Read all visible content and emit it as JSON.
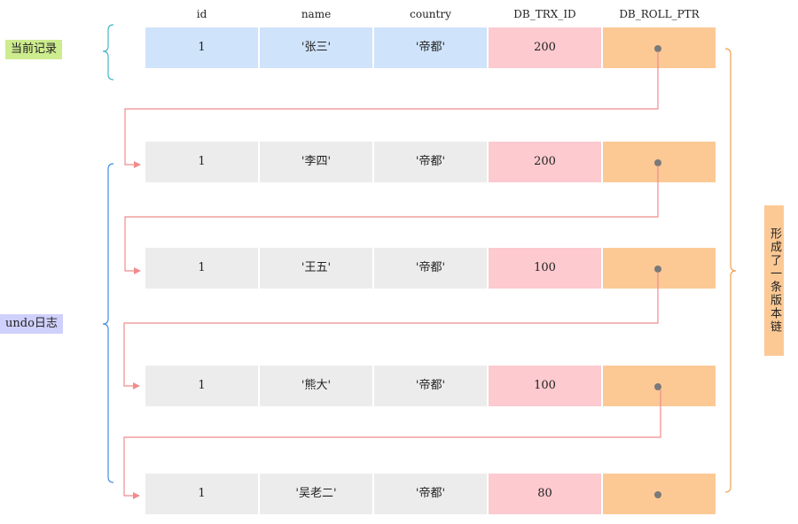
{
  "columns": {
    "id": "id",
    "name": "name",
    "country": "country",
    "trx": "DB_TRX_ID",
    "ptr": "DB_ROLL_PTR"
  },
  "rows": [
    {
      "id": "1",
      "name": "'张三'",
      "country": "'帝都'",
      "trx": "200",
      "is_current": true
    },
    {
      "id": "1",
      "name": "'李四'",
      "country": "'帝都'",
      "trx": "200",
      "is_current": false
    },
    {
      "id": "1",
      "name": "'王五'",
      "country": "'帝都'",
      "trx": "100",
      "is_current": false
    },
    {
      "id": "1",
      "name": "'熊大'",
      "country": "'帝都'",
      "trx": "100",
      "is_current": false
    },
    {
      "id": "1",
      "name": "'吴老二'",
      "country": "'帝都'",
      "trx": "80",
      "is_current": false
    }
  ],
  "labels": {
    "current": "当前记录",
    "undo": "undo日志",
    "chain": "形成了一条版本链"
  },
  "colors": {
    "current_row": "#cfe3fb",
    "undo_row": "#ececec",
    "trx": "#fccacf",
    "ptr": "#fcc995",
    "arrow": "#f08c8c",
    "brace_current": "#41b6c6",
    "brace_undo": "#3d8fe0",
    "brace_chain": "#f0a24b"
  }
}
